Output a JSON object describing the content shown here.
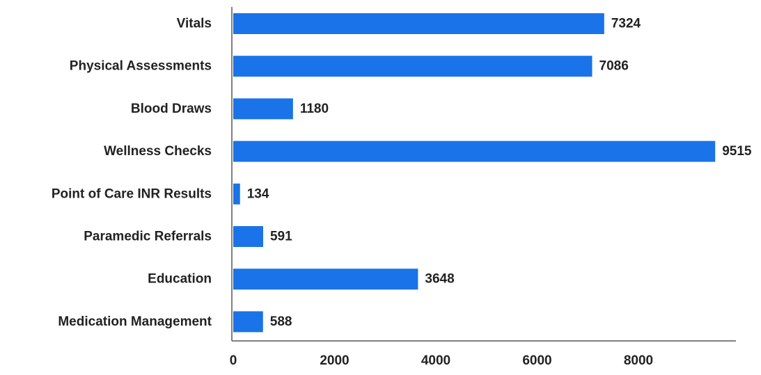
{
  "chart_data": {
    "type": "bar",
    "orientation": "horizontal",
    "categories": [
      "Vitals",
      "Physical Assessments",
      "Blood Draws",
      "Wellness Checks",
      "Point of Care INR Results",
      "Paramedic Referrals",
      "Education",
      "Medication Management"
    ],
    "values": [
      7324,
      7086,
      1180,
      9515,
      134,
      591,
      3648,
      588
    ],
    "data_labels": [
      "7324",
      "7086",
      "1180",
      "9515",
      "134",
      "591",
      "3648",
      "588"
    ],
    "x_ticks": [
      "0",
      "2000",
      "4000",
      "6000",
      "8000"
    ],
    "xlim": [
      0,
      10000
    ],
    "title": "",
    "xlabel": "",
    "ylabel": "",
    "grid": false,
    "legend": false,
    "colors": {
      "bar": "#1a73e8",
      "axis": "#555555",
      "text": "#222222"
    }
  }
}
